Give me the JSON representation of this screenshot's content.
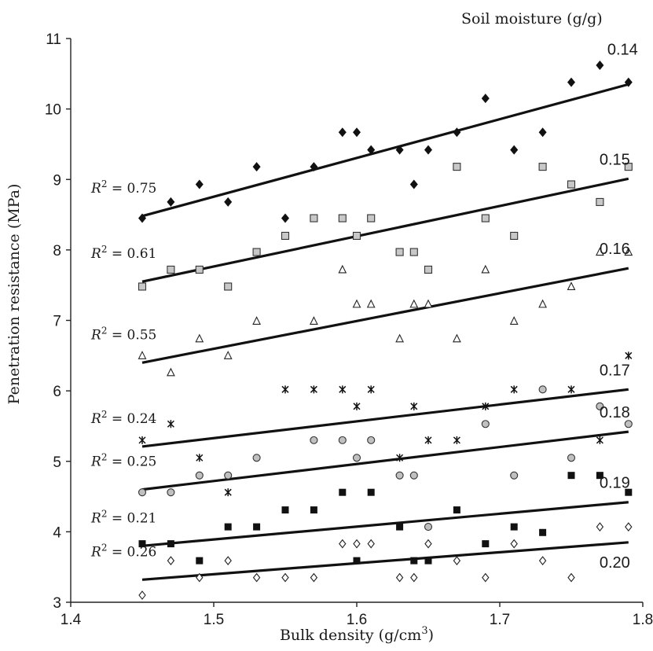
{
  "chart_data": {
    "type": "scatter",
    "title": "",
    "xlabel": "Bulk density (g/cm3)",
    "xlabel_parts": {
      "base": "Bulk density (g/cm",
      "sup": "3",
      "end": ")"
    },
    "ylabel": "Penetration resistance (MPa)",
    "legend_title": "Soil moisture (g/g)",
    "xlim": [
      1.4,
      1.8
    ],
    "ylim": [
      3,
      11
    ],
    "xticks": [
      "1.4",
      "1.5",
      "1.6",
      "1.7",
      "1.8"
    ],
    "yticks": [
      "3",
      "4",
      "5",
      "6",
      "7",
      "8",
      "9",
      "10",
      "11"
    ],
    "grid": false,
    "series": [
      {
        "name": "0.14",
        "r2": "0.75",
        "marker": "diamond-filled",
        "trend": [
          [
            1.45,
            8.48
          ],
          [
            1.79,
            10.35
          ]
        ],
        "points": [
          [
            1.45,
            8.45
          ],
          [
            1.47,
            8.68
          ],
          [
            1.49,
            8.93
          ],
          [
            1.51,
            8.68
          ],
          [
            1.53,
            9.18
          ],
          [
            1.55,
            8.45
          ],
          [
            1.57,
            9.18
          ],
          [
            1.59,
            9.67
          ],
          [
            1.6,
            9.67
          ],
          [
            1.61,
            9.42
          ],
          [
            1.63,
            9.42
          ],
          [
            1.64,
            8.93
          ],
          [
            1.65,
            9.42
          ],
          [
            1.67,
            9.67
          ],
          [
            1.69,
            10.15
          ],
          [
            1.71,
            9.42
          ],
          [
            1.73,
            9.67
          ],
          [
            1.75,
            10.38
          ],
          [
            1.77,
            10.62
          ],
          [
            1.79,
            10.38
          ]
        ]
      },
      {
        "name": "0.15",
        "r2": "0.61",
        "marker": "square-gray",
        "trend": [
          [
            1.45,
            7.55
          ],
          [
            1.79,
            9.01
          ]
        ],
        "points": [
          [
            1.45,
            7.48
          ],
          [
            1.47,
            7.72
          ],
          [
            1.49,
            7.72
          ],
          [
            1.51,
            7.48
          ],
          [
            1.53,
            7.97
          ],
          [
            1.55,
            8.2
          ],
          [
            1.57,
            8.45
          ],
          [
            1.59,
            8.45
          ],
          [
            1.6,
            8.2
          ],
          [
            1.61,
            8.45
          ],
          [
            1.63,
            7.97
          ],
          [
            1.64,
            7.97
          ],
          [
            1.65,
            7.72
          ],
          [
            1.67,
            9.18
          ],
          [
            1.69,
            8.45
          ],
          [
            1.71,
            8.2
          ],
          [
            1.73,
            9.18
          ],
          [
            1.75,
            8.93
          ],
          [
            1.77,
            8.68
          ],
          [
            1.79,
            9.18
          ]
        ]
      },
      {
        "name": "0.16",
        "r2": "0.55",
        "marker": "triangle-open",
        "trend": [
          [
            1.45,
            6.4
          ],
          [
            1.79,
            7.74
          ]
        ],
        "points": [
          [
            1.45,
            6.5
          ],
          [
            1.47,
            6.26
          ],
          [
            1.49,
            6.74
          ],
          [
            1.51,
            6.5
          ],
          [
            1.53,
            6.99
          ],
          [
            1.57,
            6.99
          ],
          [
            1.59,
            7.72
          ],
          [
            1.6,
            7.23
          ],
          [
            1.61,
            7.23
          ],
          [
            1.63,
            6.74
          ],
          [
            1.64,
            7.23
          ],
          [
            1.65,
            7.23
          ],
          [
            1.67,
            6.74
          ],
          [
            1.69,
            7.72
          ],
          [
            1.71,
            6.99
          ],
          [
            1.73,
            7.23
          ],
          [
            1.75,
            7.48
          ],
          [
            1.77,
            7.97
          ],
          [
            1.79,
            7.97
          ]
        ]
      },
      {
        "name": "0.17",
        "r2": "0.24",
        "marker": "star",
        "trend": [
          [
            1.45,
            5.21
          ],
          [
            1.79,
            6.02
          ]
        ],
        "points": [
          [
            1.45,
            5.3
          ],
          [
            1.47,
            5.53
          ],
          [
            1.49,
            5.05
          ],
          [
            1.51,
            4.56
          ],
          [
            1.55,
            6.02
          ],
          [
            1.57,
            6.02
          ],
          [
            1.59,
            6.02
          ],
          [
            1.6,
            5.78
          ],
          [
            1.61,
            6.02
          ],
          [
            1.63,
            5.05
          ],
          [
            1.64,
            5.78
          ],
          [
            1.65,
            5.3
          ],
          [
            1.67,
            5.3
          ],
          [
            1.69,
            5.78
          ],
          [
            1.71,
            6.02
          ],
          [
            1.75,
            6.02
          ],
          [
            1.77,
            5.3
          ],
          [
            1.79,
            6.5
          ]
        ]
      },
      {
        "name": "0.18",
        "r2": "0.25",
        "marker": "circle-gray",
        "trend": [
          [
            1.45,
            4.6
          ],
          [
            1.79,
            5.42
          ]
        ],
        "points": [
          [
            1.45,
            4.56
          ],
          [
            1.47,
            4.56
          ],
          [
            1.49,
            4.8
          ],
          [
            1.51,
            4.8
          ],
          [
            1.53,
            5.05
          ],
          [
            1.57,
            5.3
          ],
          [
            1.59,
            5.3
          ],
          [
            1.6,
            5.05
          ],
          [
            1.61,
            5.3
          ],
          [
            1.63,
            4.8
          ],
          [
            1.64,
            4.8
          ],
          [
            1.65,
            4.07
          ],
          [
            1.69,
            5.53
          ],
          [
            1.71,
            4.8
          ],
          [
            1.73,
            6.02
          ],
          [
            1.75,
            5.05
          ],
          [
            1.77,
            5.78
          ],
          [
            1.79,
            5.53
          ]
        ]
      },
      {
        "name": "0.19",
        "r2": "0.21",
        "marker": "square-filled",
        "trend": [
          [
            1.45,
            3.8
          ],
          [
            1.79,
            4.42
          ]
        ],
        "points": [
          [
            1.45,
            3.83
          ],
          [
            1.47,
            3.83
          ],
          [
            1.49,
            3.59
          ],
          [
            1.51,
            4.07
          ],
          [
            1.53,
            4.07
          ],
          [
            1.55,
            4.31
          ],
          [
            1.57,
            4.31
          ],
          [
            1.59,
            4.56
          ],
          [
            1.6,
            3.59
          ],
          [
            1.61,
            4.56
          ],
          [
            1.63,
            4.07
          ],
          [
            1.64,
            3.59
          ],
          [
            1.65,
            3.59
          ],
          [
            1.67,
            4.31
          ],
          [
            1.69,
            3.83
          ],
          [
            1.71,
            4.07
          ],
          [
            1.73,
            3.99
          ],
          [
            1.75,
            4.8
          ],
          [
            1.77,
            4.8
          ],
          [
            1.79,
            4.56
          ]
        ]
      },
      {
        "name": "0.20",
        "r2": "0.26",
        "marker": "diamond-open",
        "trend": [
          [
            1.45,
            3.32
          ],
          [
            1.79,
            3.85
          ]
        ],
        "points": [
          [
            1.45,
            3.1
          ],
          [
            1.47,
            3.59
          ],
          [
            1.49,
            3.35
          ],
          [
            1.51,
            3.59
          ],
          [
            1.53,
            3.35
          ],
          [
            1.55,
            3.35
          ],
          [
            1.57,
            3.35
          ],
          [
            1.59,
            3.83
          ],
          [
            1.6,
            3.83
          ],
          [
            1.61,
            3.83
          ],
          [
            1.63,
            3.35
          ],
          [
            1.64,
            3.35
          ],
          [
            1.65,
            3.83
          ],
          [
            1.67,
            3.59
          ],
          [
            1.69,
            3.35
          ],
          [
            1.71,
            3.83
          ],
          [
            1.73,
            3.59
          ],
          [
            1.75,
            3.35
          ],
          [
            1.77,
            4.07
          ],
          [
            1.79,
            4.07
          ]
        ]
      }
    ]
  }
}
